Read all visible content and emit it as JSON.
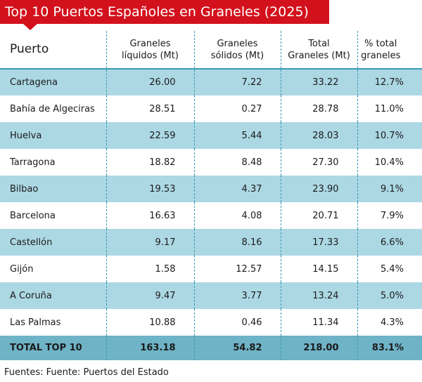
{
  "title": "Top 10 Puertos Españoles en Graneles (2025)",
  "columns": [
    "Puerto",
    "Graneles líquidos (Mt)",
    "Graneles sólidos (Mt)",
    "Total Graneles (Mt)",
    "% total graneles"
  ],
  "column_lines": [
    [
      "Puerto"
    ],
    [
      "Graneles",
      "líquidos (Mt)"
    ],
    [
      "Graneles",
      "sólidos (Mt)"
    ],
    [
      "Total",
      "Graneles (Mt)"
    ],
    [
      "% total",
      "graneles"
    ]
  ],
  "rows": [
    [
      "Cartagena",
      "26.00",
      "7.22",
      "33.22",
      "12.7%"
    ],
    [
      "Bahía de Algeciras",
      "28.51",
      "0.27",
      "28.78",
      "11.0%"
    ],
    [
      "Huelva",
      "22.59",
      "5.44",
      "28.03",
      "10.7%"
    ],
    [
      "Tarragona",
      "18.82",
      "8.48",
      "27.30",
      "10.4%"
    ],
    [
      "Bilbao",
      "19.53",
      "4.37",
      "23.90",
      "9.1%"
    ],
    [
      "Barcelona",
      "16.63",
      "4.08",
      "20.71",
      "7.9%"
    ],
    [
      "Castellón",
      "9.17",
      "8.16",
      "17.33",
      "6.6%"
    ],
    [
      "Gijón",
      "1.58",
      "12.57",
      "14.15",
      "5.4%"
    ],
    [
      "A Coruña",
      "9.47",
      "3.77",
      "13.24",
      "5.0%"
    ],
    [
      "Las Palmas",
      "10.88",
      "0.46",
      "11.34",
      "4.3%"
    ]
  ],
  "total_row": [
    "TOTAL TOP 10",
    "163.18",
    "54.82",
    "218.00",
    "83.1%"
  ],
  "source": {
    "label": "Fuentes:",
    "text": "Fuente: Puertos del Estado"
  },
  "colors": {
    "title_background": "#d3111c",
    "row_shade": "#acd8e4",
    "total_row": "#6fb3c6",
    "separator": "#3b9ab5"
  }
}
